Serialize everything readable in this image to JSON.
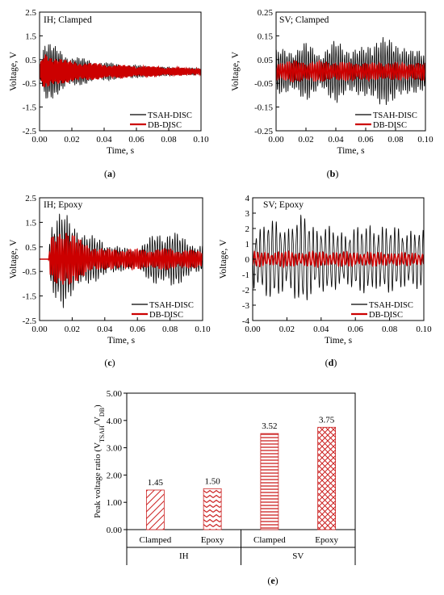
{
  "figure": {
    "panel_labels": [
      "(a)",
      "(b)",
      "(c)",
      "(d)",
      "(e)"
    ],
    "panel_letters": [
      "a",
      "b",
      "c",
      "d",
      "e"
    ]
  },
  "colors": {
    "tsah": "#000000",
    "db": "#cc0000",
    "bar_hatch": "#cc2222"
  },
  "chart_data": [
    {
      "id": "a",
      "type": "line",
      "title": "IH; Clamped",
      "xlabel": "Time, s",
      "ylabel": "Voltage, V",
      "xlim": [
        0,
        0.1
      ],
      "ylim": [
        -2.5,
        2.5
      ],
      "xticks": [
        "0.00",
        "0.02",
        "0.04",
        "0.06",
        "0.08",
        "0.10"
      ],
      "yticks": [
        "2.5",
        "1.5",
        "0.5",
        "-0.5",
        "-1.5",
        "-2.5"
      ],
      "legend_position": "bottom-right",
      "series": [
        {
          "name": "TSAH-DISC",
          "color": "#000000",
          "envelope": [
            [
              0.0,
              0.2
            ],
            [
              0.003,
              1.3
            ],
            [
              0.01,
              1.0
            ],
            [
              0.02,
              0.6
            ],
            [
              0.04,
              0.35
            ],
            [
              0.06,
              0.25
            ],
            [
              0.08,
              0.18
            ],
            [
              0.1,
              0.15
            ]
          ],
          "frequency_hz": 950
        },
        {
          "name": "DB-DISC",
          "color": "#cc0000",
          "envelope": [
            [
              0.0,
              0.3
            ],
            [
              0.003,
              0.85
            ],
            [
              0.01,
              0.65
            ],
            [
              0.02,
              0.45
            ],
            [
              0.04,
              0.3
            ],
            [
              0.06,
              0.22
            ],
            [
              0.08,
              0.16
            ],
            [
              0.1,
              0.12
            ]
          ],
          "frequency_hz": 1100
        }
      ]
    },
    {
      "id": "b",
      "type": "line",
      "title": "SV; Clamped",
      "xlabel": "Time, s",
      "ylabel": "Voltage, V",
      "xlim": [
        0,
        0.1
      ],
      "ylim": [
        -0.25,
        0.25
      ],
      "xticks": [
        "0.00",
        "0.02",
        "0.04",
        "0.06",
        "0.08",
        "0.10"
      ],
      "yticks": [
        "0.25",
        "0.15",
        "0.05",
        "-0.05",
        "-0.15",
        "-0.25"
      ],
      "legend_position": "bottom-right",
      "series": [
        {
          "name": "TSAH-DISC",
          "color": "#000000",
          "envelope": [
            [
              0.0,
              0.09
            ],
            [
              0.01,
              0.09
            ],
            [
              0.02,
              0.13
            ],
            [
              0.03,
              0.08
            ],
            [
              0.04,
              0.15
            ],
            [
              0.05,
              0.1
            ],
            [
              0.06,
              0.12
            ],
            [
              0.07,
              0.16
            ],
            [
              0.08,
              0.14
            ],
            [
              0.09,
              0.09
            ],
            [
              0.1,
              0.1
            ]
          ],
          "frequency_hz": 700
        },
        {
          "name": "DB-DISC",
          "color": "#cc0000",
          "envelope": [
            [
              0.0,
              0.04
            ],
            [
              0.1,
              0.04
            ]
          ],
          "frequency_hz": 650
        }
      ]
    },
    {
      "id": "c",
      "type": "line",
      "title": "IH; Epoxy",
      "xlabel": "Time, s",
      "ylabel": "Voltage, V",
      "xlim": [
        0,
        0.1
      ],
      "ylim": [
        -2.5,
        2.5
      ],
      "xticks": [
        "0.00",
        "0.02",
        "0.04",
        "0.06",
        "0.08",
        "0.10"
      ],
      "yticks": [
        "2.5",
        "1.5",
        "0.5",
        "-0.5",
        "-1.5",
        "-2.5"
      ],
      "legend_position": "bottom-right",
      "series": [
        {
          "name": "TSAH-DISC",
          "color": "#000000",
          "envelope": [
            [
              0.0,
              0.0
            ],
            [
              0.0055,
              0.0
            ],
            [
              0.007,
              1.8
            ],
            [
              0.014,
              2.1
            ],
            [
              0.02,
              1.5
            ],
            [
              0.03,
              1.0
            ],
            [
              0.04,
              0.7
            ],
            [
              0.05,
              0.45
            ],
            [
              0.058,
              0.35
            ],
            [
              0.07,
              0.9
            ],
            [
              0.08,
              1.15
            ],
            [
              0.09,
              0.75
            ],
            [
              0.1,
              0.55
            ]
          ],
          "frequency_hz": 650
        },
        {
          "name": "DB-DISC",
          "color": "#cc0000",
          "envelope": [
            [
              0.0,
              0.0
            ],
            [
              0.0055,
              0.0
            ],
            [
              0.007,
              1.0
            ],
            [
              0.016,
              1.4
            ],
            [
              0.03,
              0.6
            ],
            [
              0.04,
              0.45
            ],
            [
              0.06,
              0.4
            ],
            [
              0.08,
              0.4
            ],
            [
              0.1,
              0.3
            ]
          ],
          "frequency_hz": 780
        }
      ]
    },
    {
      "id": "d",
      "type": "line",
      "title": "SV; Epoxy",
      "xlabel": "Time, s",
      "ylabel": "Voltage, V",
      "xlim": [
        0,
        0.1
      ],
      "ylim": [
        -4,
        4
      ],
      "xticks": [
        "0.00",
        "0.02",
        "0.04",
        "0.06",
        "0.08",
        "0.10"
      ],
      "yticks": [
        "4",
        "3",
        "2",
        "1",
        "0",
        "-1",
        "-2",
        "-3",
        "-4"
      ],
      "legend_position": "bottom-right",
      "series": [
        {
          "name": "TSAH-DISC",
          "color": "#000000",
          "envelope": [
            [
              0.0,
              2.2
            ],
            [
              0.02,
              2.4
            ],
            [
              0.03,
              2.8
            ],
            [
              0.05,
              2.0
            ],
            [
              0.07,
              2.6
            ],
            [
              0.09,
              2.3
            ],
            [
              0.1,
              2.0
            ]
          ],
          "frequency_hz": 420
        },
        {
          "name": "DB-DISC",
          "color": "#cc0000",
          "envelope": [
            [
              0.0,
              0.45
            ],
            [
              0.1,
              0.45
            ]
          ],
          "frequency_hz": 500
        }
      ]
    },
    {
      "id": "e",
      "type": "bar",
      "ylabel": "Peak voltage ratio (V",
      "ylabel_sub1": "TSAH",
      "ylabel_mid": "/V",
      "ylabel_sub2": "DB",
      "ylabel_end": ")",
      "ylim": [
        0,
        5
      ],
      "yticks": [
        "0.00",
        "1.00",
        "2.00",
        "3.00",
        "4.00",
        "5.00"
      ],
      "categories": [
        "Clamped",
        "Epoxy",
        "Clamped",
        "Epoxy"
      ],
      "groups": [
        "IH",
        "SV"
      ],
      "values": [
        1.45,
        1.5,
        3.52,
        3.75
      ],
      "data_labels": [
        "1.45",
        "1.50",
        "3.52",
        "3.75"
      ],
      "patterns": [
        "diagonal",
        "zigzag",
        "horizontal",
        "crosshatch"
      ]
    }
  ]
}
